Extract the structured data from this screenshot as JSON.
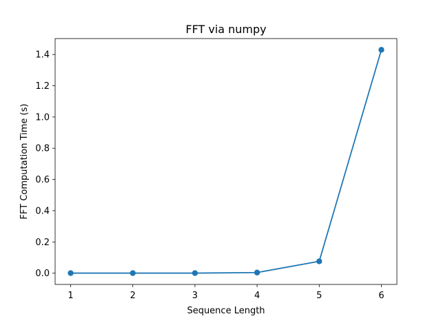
{
  "chart_data": {
    "type": "line",
    "title": "FFT via numpy",
    "xlabel": "Sequence Length",
    "ylabel": "FFT Computation Time (s)",
    "x": [
      1,
      2,
      3,
      4,
      5,
      6
    ],
    "series": [
      {
        "values": [
          0.0005,
          0.0005,
          0.0005,
          0.004,
          0.076,
          1.43
        ]
      }
    ],
    "xlim": [
      0.75,
      6.25
    ],
    "ylim": [
      -0.072,
      1.502
    ],
    "xticks": [
      1,
      2,
      3,
      4,
      5,
      6
    ],
    "yticks": [
      0.0,
      0.2,
      0.4,
      0.6,
      0.8,
      1.0,
      1.2,
      1.4
    ],
    "ytick_labels": [
      "0.0",
      "0.2",
      "0.4",
      "0.6",
      "0.8",
      "1.0",
      "1.2",
      "1.4"
    ],
    "grid": false,
    "legend": "none",
    "markers": true,
    "color": "#1f77b4"
  }
}
